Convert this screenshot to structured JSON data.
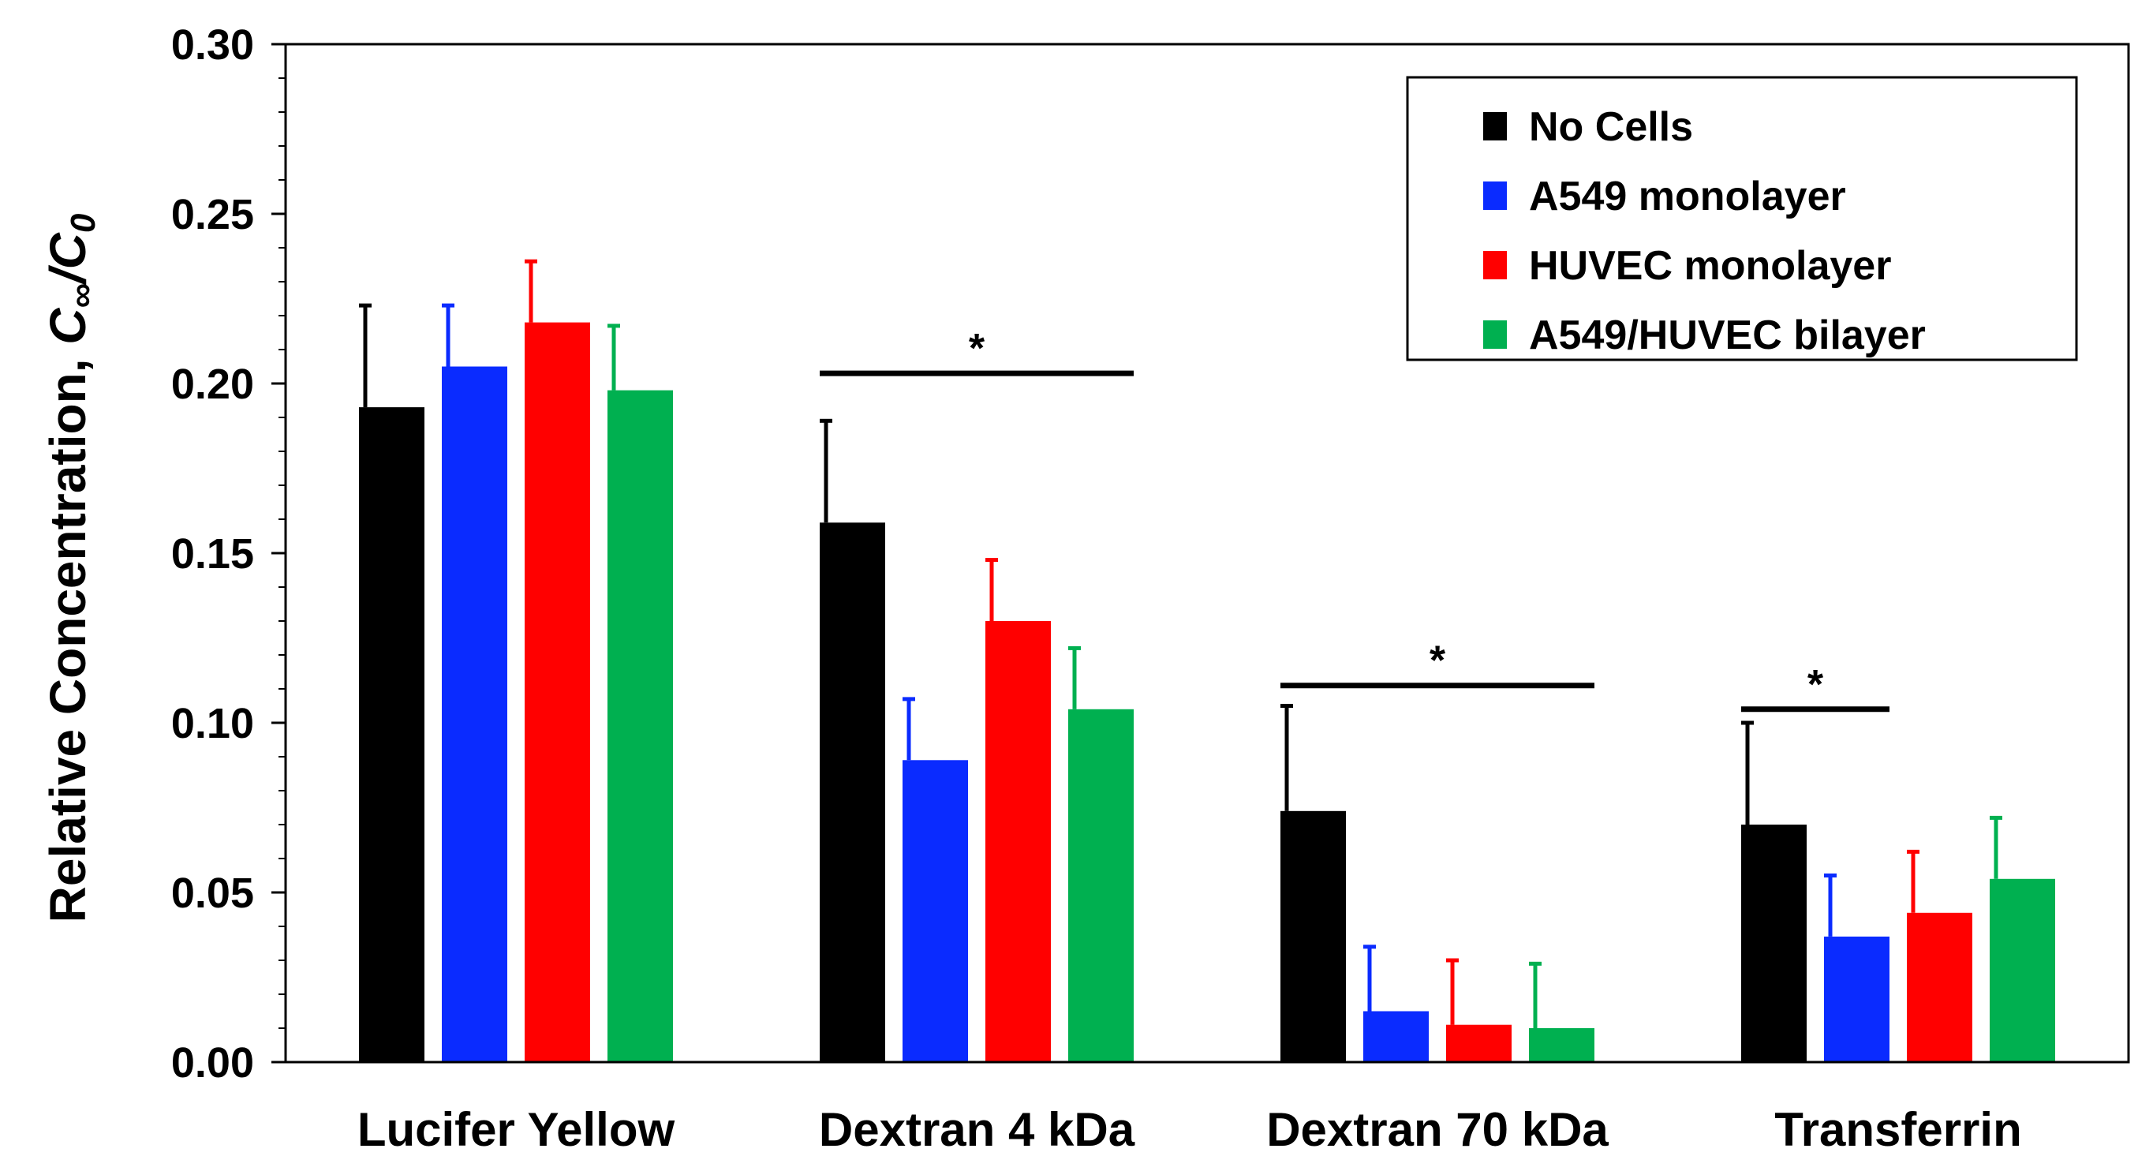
{
  "chart_data": {
    "type": "bar",
    "title": "",
    "xlabel": "",
    "ylabel_main": "Relative Concentration, ",
    "ylabel_c": "C",
    "ylabel_inf": "∞",
    "ylabel_slash": "/",
    "ylabel_c0": "C",
    "ylabel_zero": "0",
    "ylim": [
      0,
      0.3
    ],
    "yticks": [
      "0.00",
      "0.05",
      "0.10",
      "0.15",
      "0.20",
      "0.25",
      "0.30"
    ],
    "categories": [
      "Lucifer Yellow",
      "Dextran 4 kDa",
      "Dextran 70 kDa",
      "Transferrin"
    ],
    "series": [
      {
        "name": "No Cells",
        "color": "#000000",
        "values": [
          0.193,
          0.159,
          0.074,
          0.07
        ],
        "errors": [
          0.03,
          0.03,
          0.031,
          0.03
        ]
      },
      {
        "name": "A549 monolayer",
        "color": "#0a2bff",
        "values": [
          0.205,
          0.089,
          0.015,
          0.037
        ],
        "errors": [
          0.018,
          0.018,
          0.019,
          0.018
        ]
      },
      {
        "name": "HUVEC monolayer",
        "color": "#ff0000",
        "values": [
          0.218,
          0.13,
          0.011,
          0.044
        ],
        "errors": [
          0.018,
          0.018,
          0.019,
          0.018
        ]
      },
      {
        "name": "A549/HUVEC bilayer",
        "color": "#00b050",
        "values": [
          0.198,
          0.104,
          0.01,
          0.054
        ],
        "errors": [
          0.019,
          0.018,
          0.019,
          0.018
        ]
      }
    ],
    "legend_position": "top-right",
    "annotations": [
      {
        "label": "*",
        "category_index": 1,
        "from_series": 0,
        "to_series": 3,
        "y": 0.203
      },
      {
        "label": "*",
        "category_index": 2,
        "from_series": 0,
        "to_series": 3,
        "y": 0.111
      },
      {
        "label": "*",
        "category_index": 3,
        "from_series": 0,
        "to_series": 1,
        "y": 0.104
      }
    ]
  }
}
